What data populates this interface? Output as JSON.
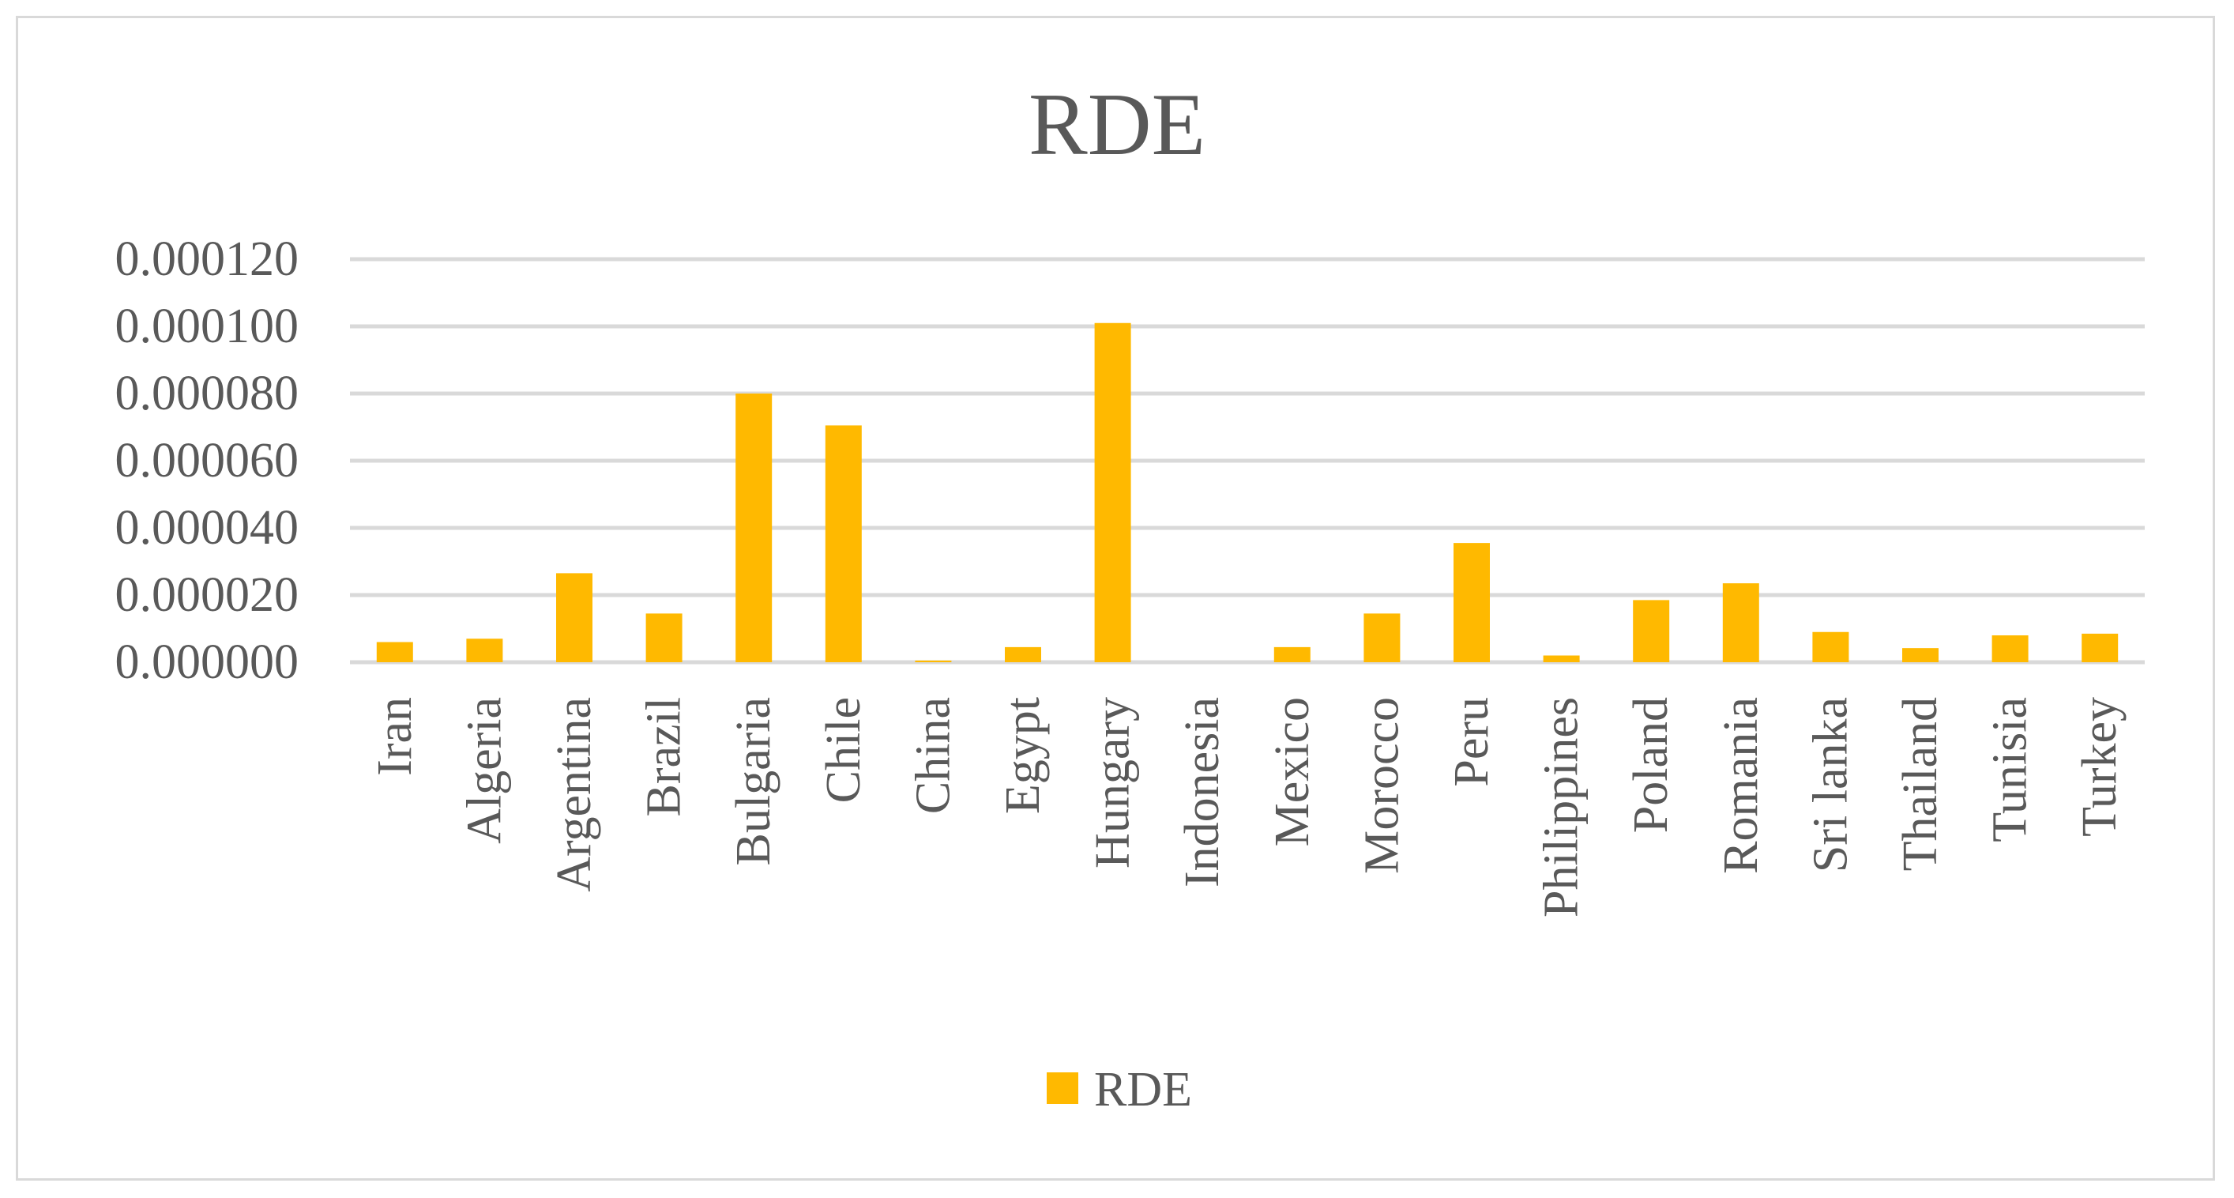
{
  "chart_data": {
    "type": "bar",
    "title": "RDE",
    "categories": [
      "Iran",
      "Algeria",
      "Argentina",
      "Brazil",
      "Bulgaria",
      "Chile",
      "China",
      "Egypt",
      "Hungary",
      "Indonesia",
      "Mexico",
      "Morocco",
      "Peru",
      "Philippines",
      "Poland",
      "Romania",
      "Sri lanka",
      "Thailand",
      "Tunisia",
      "Turkey"
    ],
    "series": [
      {
        "name": "RDE",
        "values": [
          6e-06,
          7e-06,
          2.65e-05,
          1.45e-05,
          8e-05,
          7.05e-05,
          5e-07,
          4.5e-06,
          0.000101,
          0.0,
          4.5e-06,
          1.45e-05,
          3.55e-05,
          2e-06,
          1.85e-05,
          2.35e-05,
          9e-06,
          4.2e-06,
          8e-06,
          8.5e-06
        ]
      }
    ],
    "yticks": [
      "0.000000",
      "0.000020",
      "0.000040",
      "0.000060",
      "0.000080",
      "0.000100",
      "0.000120"
    ],
    "ylim": [
      0,
      0.00012
    ],
    "grid": true,
    "legend": "bottom-center",
    "colors": {
      "bar": "#ffb900",
      "grid": "#d9d9d9",
      "text": "#595959",
      "border": "#d9d9d9"
    }
  }
}
